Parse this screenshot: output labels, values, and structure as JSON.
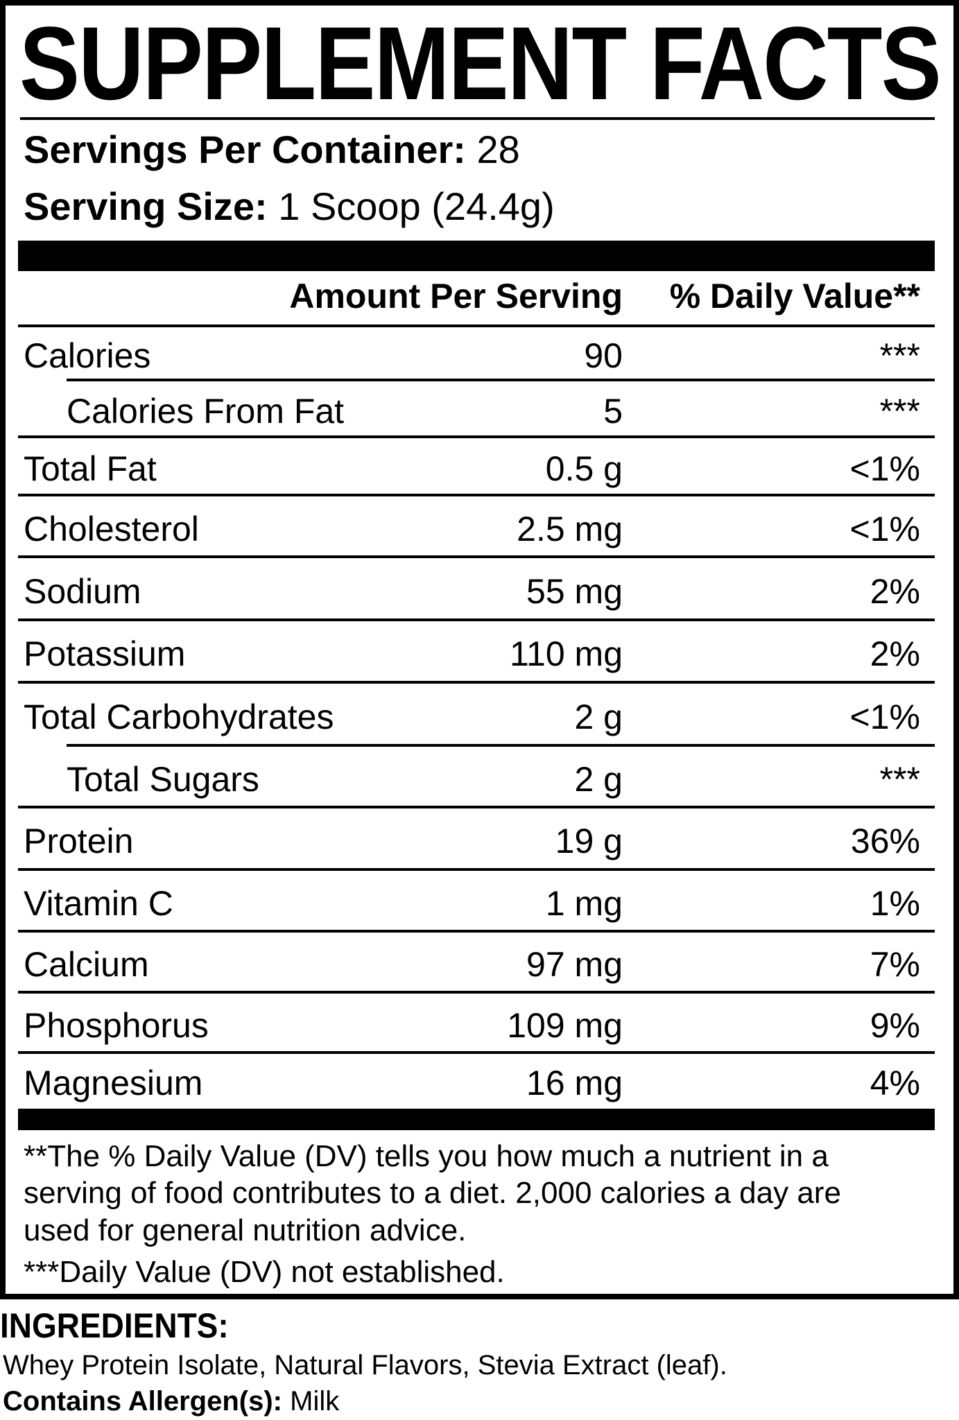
{
  "title": "SUPPLEMENT FACTS",
  "servings_per_container": {
    "label": "Servings Per Container:",
    "value": "28"
  },
  "serving_size": {
    "label": "Serving Size:",
    "value": "1 Scoop (24.4g)"
  },
  "table_header": {
    "amount": "Amount Per Serving",
    "daily_value": "% Daily Value**"
  },
  "rows": [
    {
      "name": "Calories",
      "amount": "90",
      "dv": "***",
      "sub": false
    },
    {
      "name": "Calories From Fat",
      "amount": "5",
      "dv": "***",
      "sub": true
    },
    {
      "name": "Total Fat",
      "amount": "0.5 g",
      "dv": "<1%",
      "sub": false
    },
    {
      "name": "Cholesterol",
      "amount": "2.5 mg",
      "dv": "<1%",
      "sub": false
    },
    {
      "name": "Sodium",
      "amount": "55 mg",
      "dv": "2%",
      "sub": false
    },
    {
      "name": "Potassium",
      "amount": "110 mg",
      "dv": "2%",
      "sub": false
    },
    {
      "name": "Total Carbohydrates",
      "amount": "2 g",
      "dv": "<1%",
      "sub": false
    },
    {
      "name": "Total Sugars",
      "amount": "2 g",
      "dv": "***",
      "sub": true
    },
    {
      "name": "Protein",
      "amount": "19 g",
      "dv": "36%",
      "sub": false
    },
    {
      "name": "Vitamin C",
      "amount": "1 mg",
      "dv": "1%",
      "sub": false
    },
    {
      "name": "Calcium",
      "amount": "97 mg",
      "dv": "7%",
      "sub": false
    },
    {
      "name": "Phosphorus",
      "amount": "109 mg",
      "dv": "9%",
      "sub": false
    },
    {
      "name": "Magnesium",
      "amount": "16 mg",
      "dv": "4%",
      "sub": false
    }
  ],
  "footnotes": {
    "dv_line1": "**The % Daily Value (DV) tells you how much a nutrient in a",
    "dv_line2": "serving of food contributes to a diet. 2,000 calories a day are",
    "dv_line3": "used for general nutrition advice.",
    "not_established": "***Daily Value (DV) not established."
  },
  "ingredients": {
    "heading": "INGREDIENTS:",
    "text": "Whey Protein Isolate, Natural Flavors, Stevia Extract (leaf).",
    "allergen_label": "Contains Allergen(s):",
    "allergen_value": "Milk"
  }
}
